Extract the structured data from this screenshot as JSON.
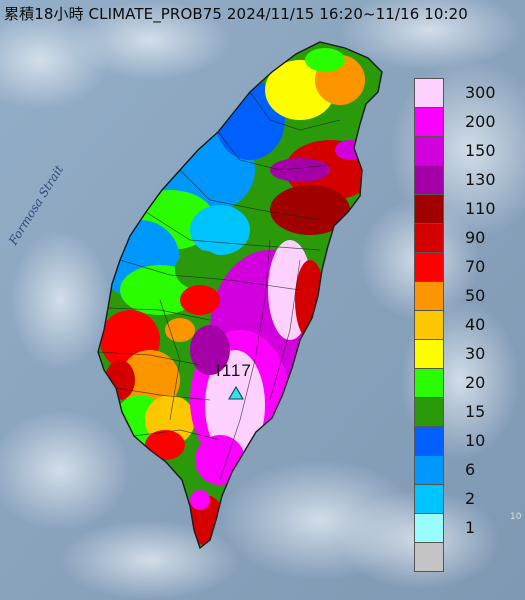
{
  "title": "累積18小時 CLIMATE_PROB75 2024/11/15 16:20~11/16 10:20",
  "strait_label": "Formosa Strait",
  "marker": {
    "label": "I117",
    "icon": "triangle-marker-icon",
    "color": "#35e0ea"
  },
  "corner_text": "10",
  "legend": {
    "items": [
      {
        "label": "300",
        "color": "#fdd1fe"
      },
      {
        "label": "200",
        "color": "#fd00fd"
      },
      {
        "label": "150",
        "color": "#d100dd"
      },
      {
        "label": "130",
        "color": "#a500a7"
      },
      {
        "label": "110",
        "color": "#a10000"
      },
      {
        "label": "90",
        "color": "#d40000"
      },
      {
        "label": "70",
        "color": "#fd0000"
      },
      {
        "label": "50",
        "color": "#fd9500"
      },
      {
        "label": "40",
        "color": "#fdc700"
      },
      {
        "label": "30",
        "color": "#fdfd00"
      },
      {
        "label": "20",
        "color": "#2afd00"
      },
      {
        "label": "15",
        "color": "#2a9a0a"
      },
      {
        "label": "10",
        "color": "#0060fd"
      },
      {
        "label": "6",
        "color": "#0098fd"
      },
      {
        "label": "2",
        "color": "#00c4fd"
      },
      {
        "label": "1",
        "color": "#9afdfd"
      },
      {
        "label": "",
        "color": "#c4c4c4"
      }
    ]
  }
}
